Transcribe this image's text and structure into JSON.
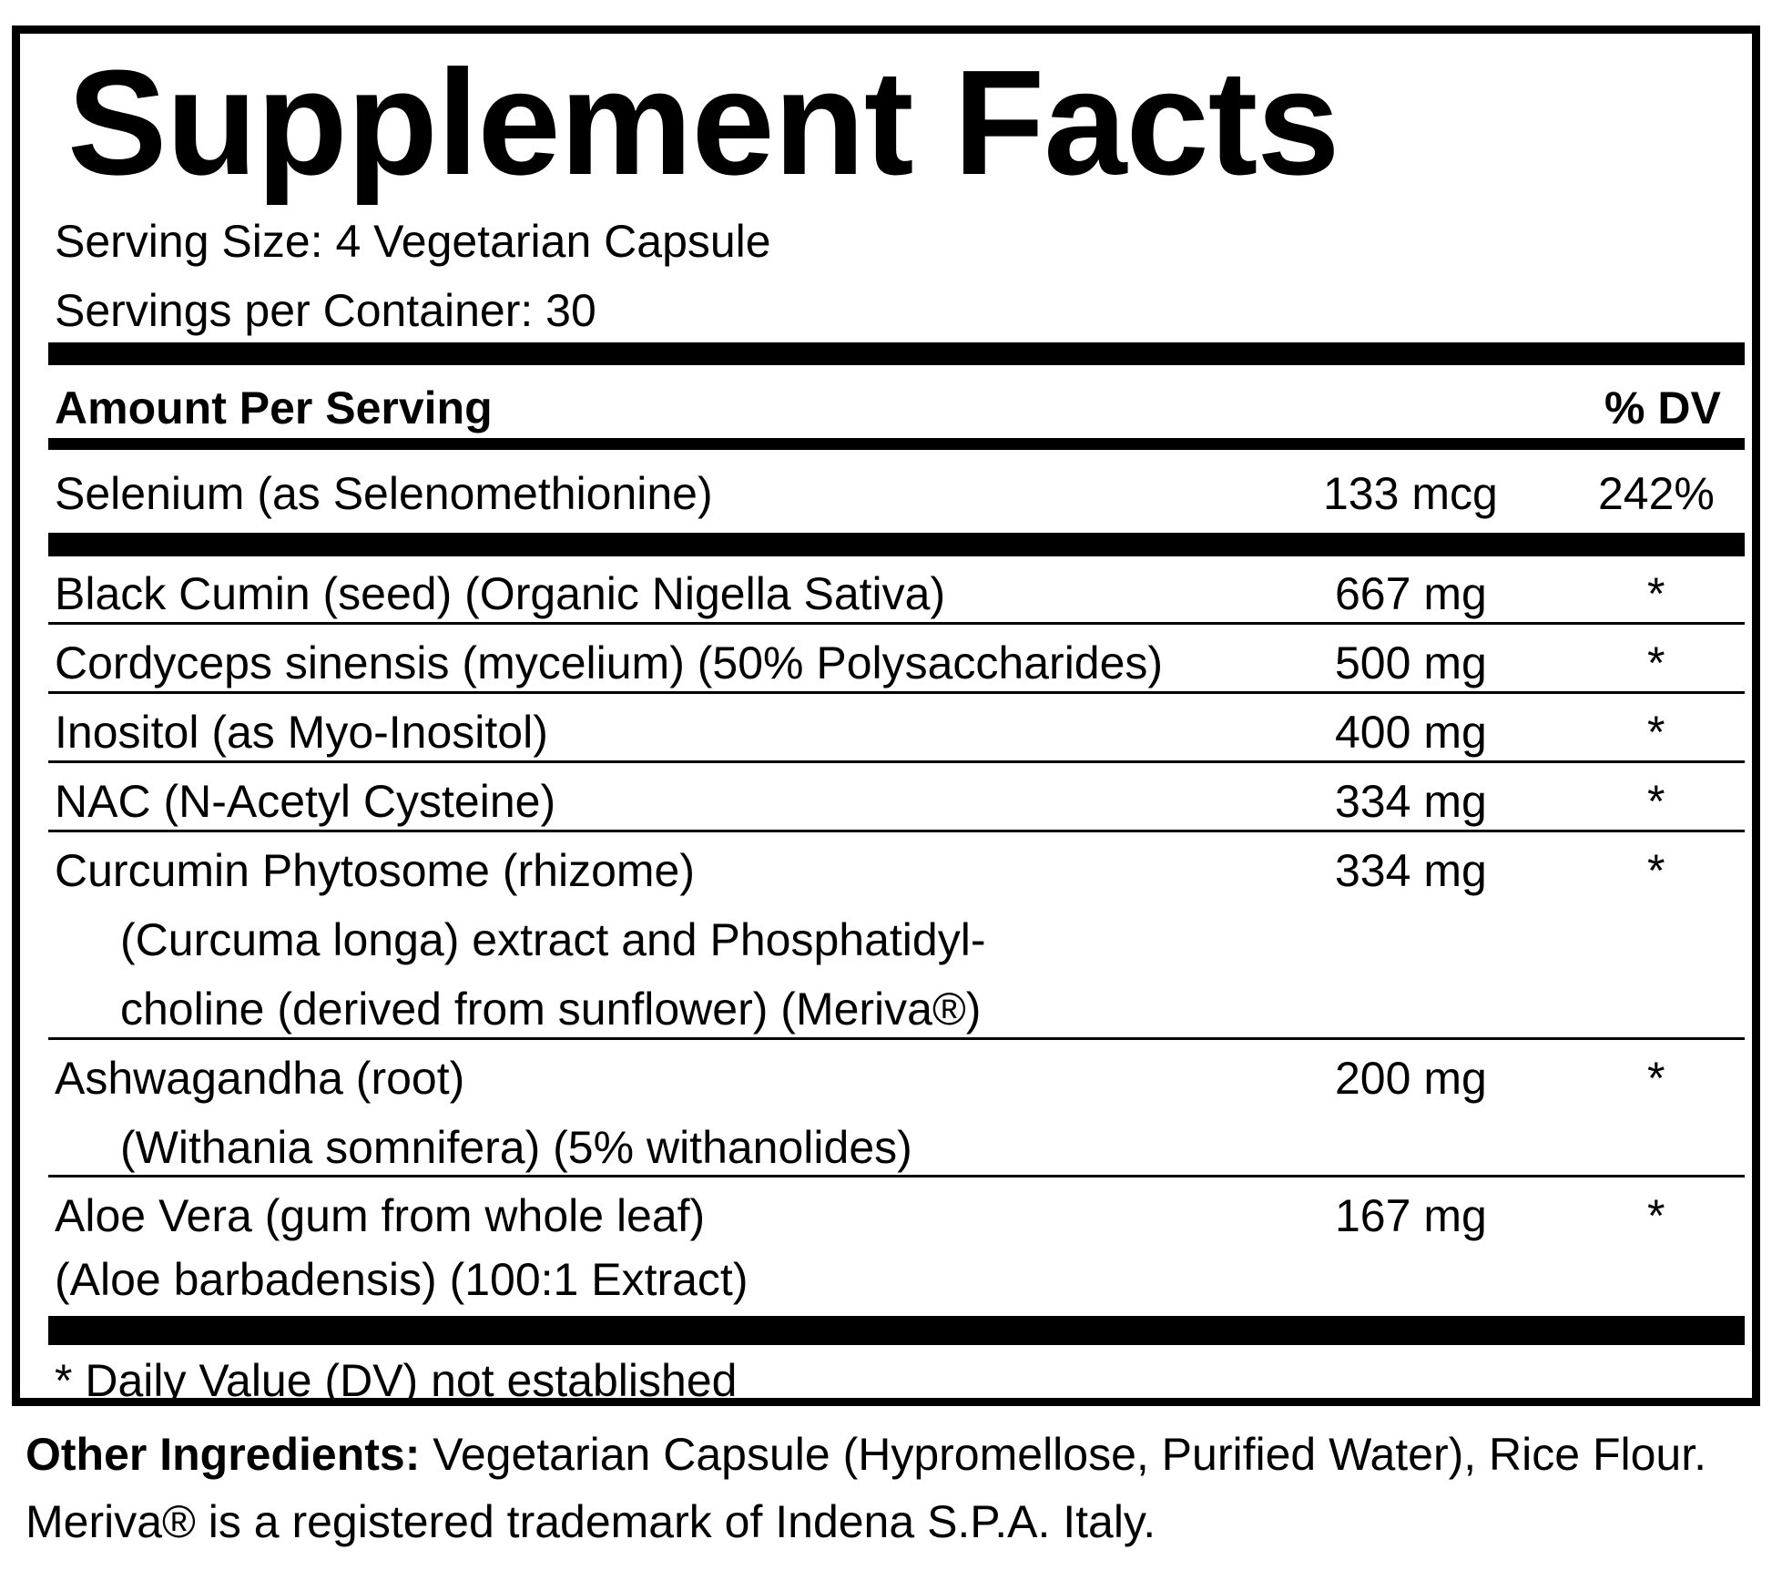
{
  "label": {
    "title": "Supplement Facts",
    "serving_size": "Serving Size: 4 Vegetarian Capsule",
    "servings_per_container": "Servings per Container: 30",
    "header_amount": "Amount Per Serving",
    "header_dv": "% DV",
    "selenium": {
      "name": "Selenium (as Selenomethionine)",
      "amount": "133 mcg",
      "dv": "242%"
    },
    "ingredients": [
      {
        "lines": [
          "Black Cumin (seed) (Organic Nigella Sativa)"
        ],
        "amount": "667 mg",
        "dv": "*"
      },
      {
        "lines": [
          "Cordyceps sinensis (mycelium) (50% Polysaccharides)"
        ],
        "amount": "500 mg",
        "dv": "*"
      },
      {
        "lines": [
          "Inositol (as Myo-Inositol)"
        ],
        "amount": "400 mg",
        "dv": "*"
      },
      {
        "lines": [
          "NAC (N-Acetyl Cysteine)"
        ],
        "amount": "334 mg",
        "dv": "*"
      },
      {
        "lines": [
          "Curcumin Phytosome (rhizome)",
          "(Curcuma longa) extract and Phosphatidyl-",
          "choline (derived from sunflower) (Meriva®)"
        ],
        "amount": "334 mg",
        "dv": "*"
      },
      {
        "lines": [
          "Ashwagandha (root)",
          "(Withania somnifera) (5% withanolides)"
        ],
        "amount": "200 mg",
        "dv": "*"
      },
      {
        "lines": [
          "Aloe Vera (gum from whole leaf)",
          "(Aloe barbadensis) (100:1 Extract)"
        ],
        "amount": "167 mg",
        "dv": "*"
      }
    ],
    "footnote": "* Daily Value (DV) not established"
  },
  "other": {
    "heading": "Other Ingredients:",
    "text": " Vegetarian Capsule (Hypromellose, Purified Water), Rice Flour.",
    "trademark": "Meriva® is a registered trademark of Indena S.P.A. Italy."
  }
}
